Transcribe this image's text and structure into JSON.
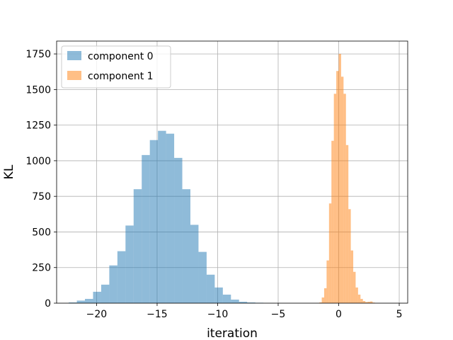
{
  "chart_data": {
    "type": "bar",
    "title": "",
    "xlabel": "iteration",
    "ylabel": "KL",
    "xlim": [
      -23.3,
      5.7
    ],
    "ylim": [
      0,
      1840
    ],
    "xticks": [
      -20,
      -15,
      -10,
      -5,
      0,
      5
    ],
    "yticks": [
      0,
      250,
      500,
      750,
      1000,
      1250,
      1500,
      1750
    ],
    "grid": true,
    "legend_position": "top-left",
    "series": [
      {
        "name": "component 0",
        "color": "#1f77b4",
        "opacity": 0.5,
        "bin_edges": [
          -22.3,
          -21.63,
          -20.96,
          -20.29,
          -19.62,
          -18.95,
          -18.28,
          -17.61,
          -16.94,
          -16.27,
          -15.6,
          -14.93,
          -14.26,
          -13.59,
          -12.92,
          -12.25,
          -11.58,
          -10.91,
          -10.24,
          -9.57,
          -8.9,
          -8.23,
          -7.56,
          -6.89,
          -6.22,
          -5.55
        ],
        "counts": [
          5,
          18,
          30,
          80,
          130,
          265,
          365,
          545,
          800,
          1040,
          1145,
          1210,
          1190,
          1020,
          800,
          550,
          360,
          200,
          110,
          60,
          25,
          10,
          5,
          3,
          1
        ]
      },
      {
        "name": "component 1",
        "color": "#ff7f0e",
        "opacity": 0.5,
        "bin_edges": [
          -1.6,
          -1.4,
          -1.2,
          -1.0,
          -0.8,
          -0.6,
          -0.4,
          -0.2,
          0.0,
          0.2,
          0.4,
          0.6,
          0.8,
          1.0,
          1.2,
          1.4,
          1.6,
          1.8,
          2.0,
          2.2,
          2.4,
          2.6,
          2.8,
          3.0
        ],
        "counts": [
          5,
          40,
          105,
          300,
          700,
          1140,
          1470,
          1630,
          1750,
          1590,
          1470,
          1110,
          660,
          370,
          220,
          110,
          60,
          30,
          15,
          8,
          10,
          12,
          4
        ]
      }
    ]
  }
}
